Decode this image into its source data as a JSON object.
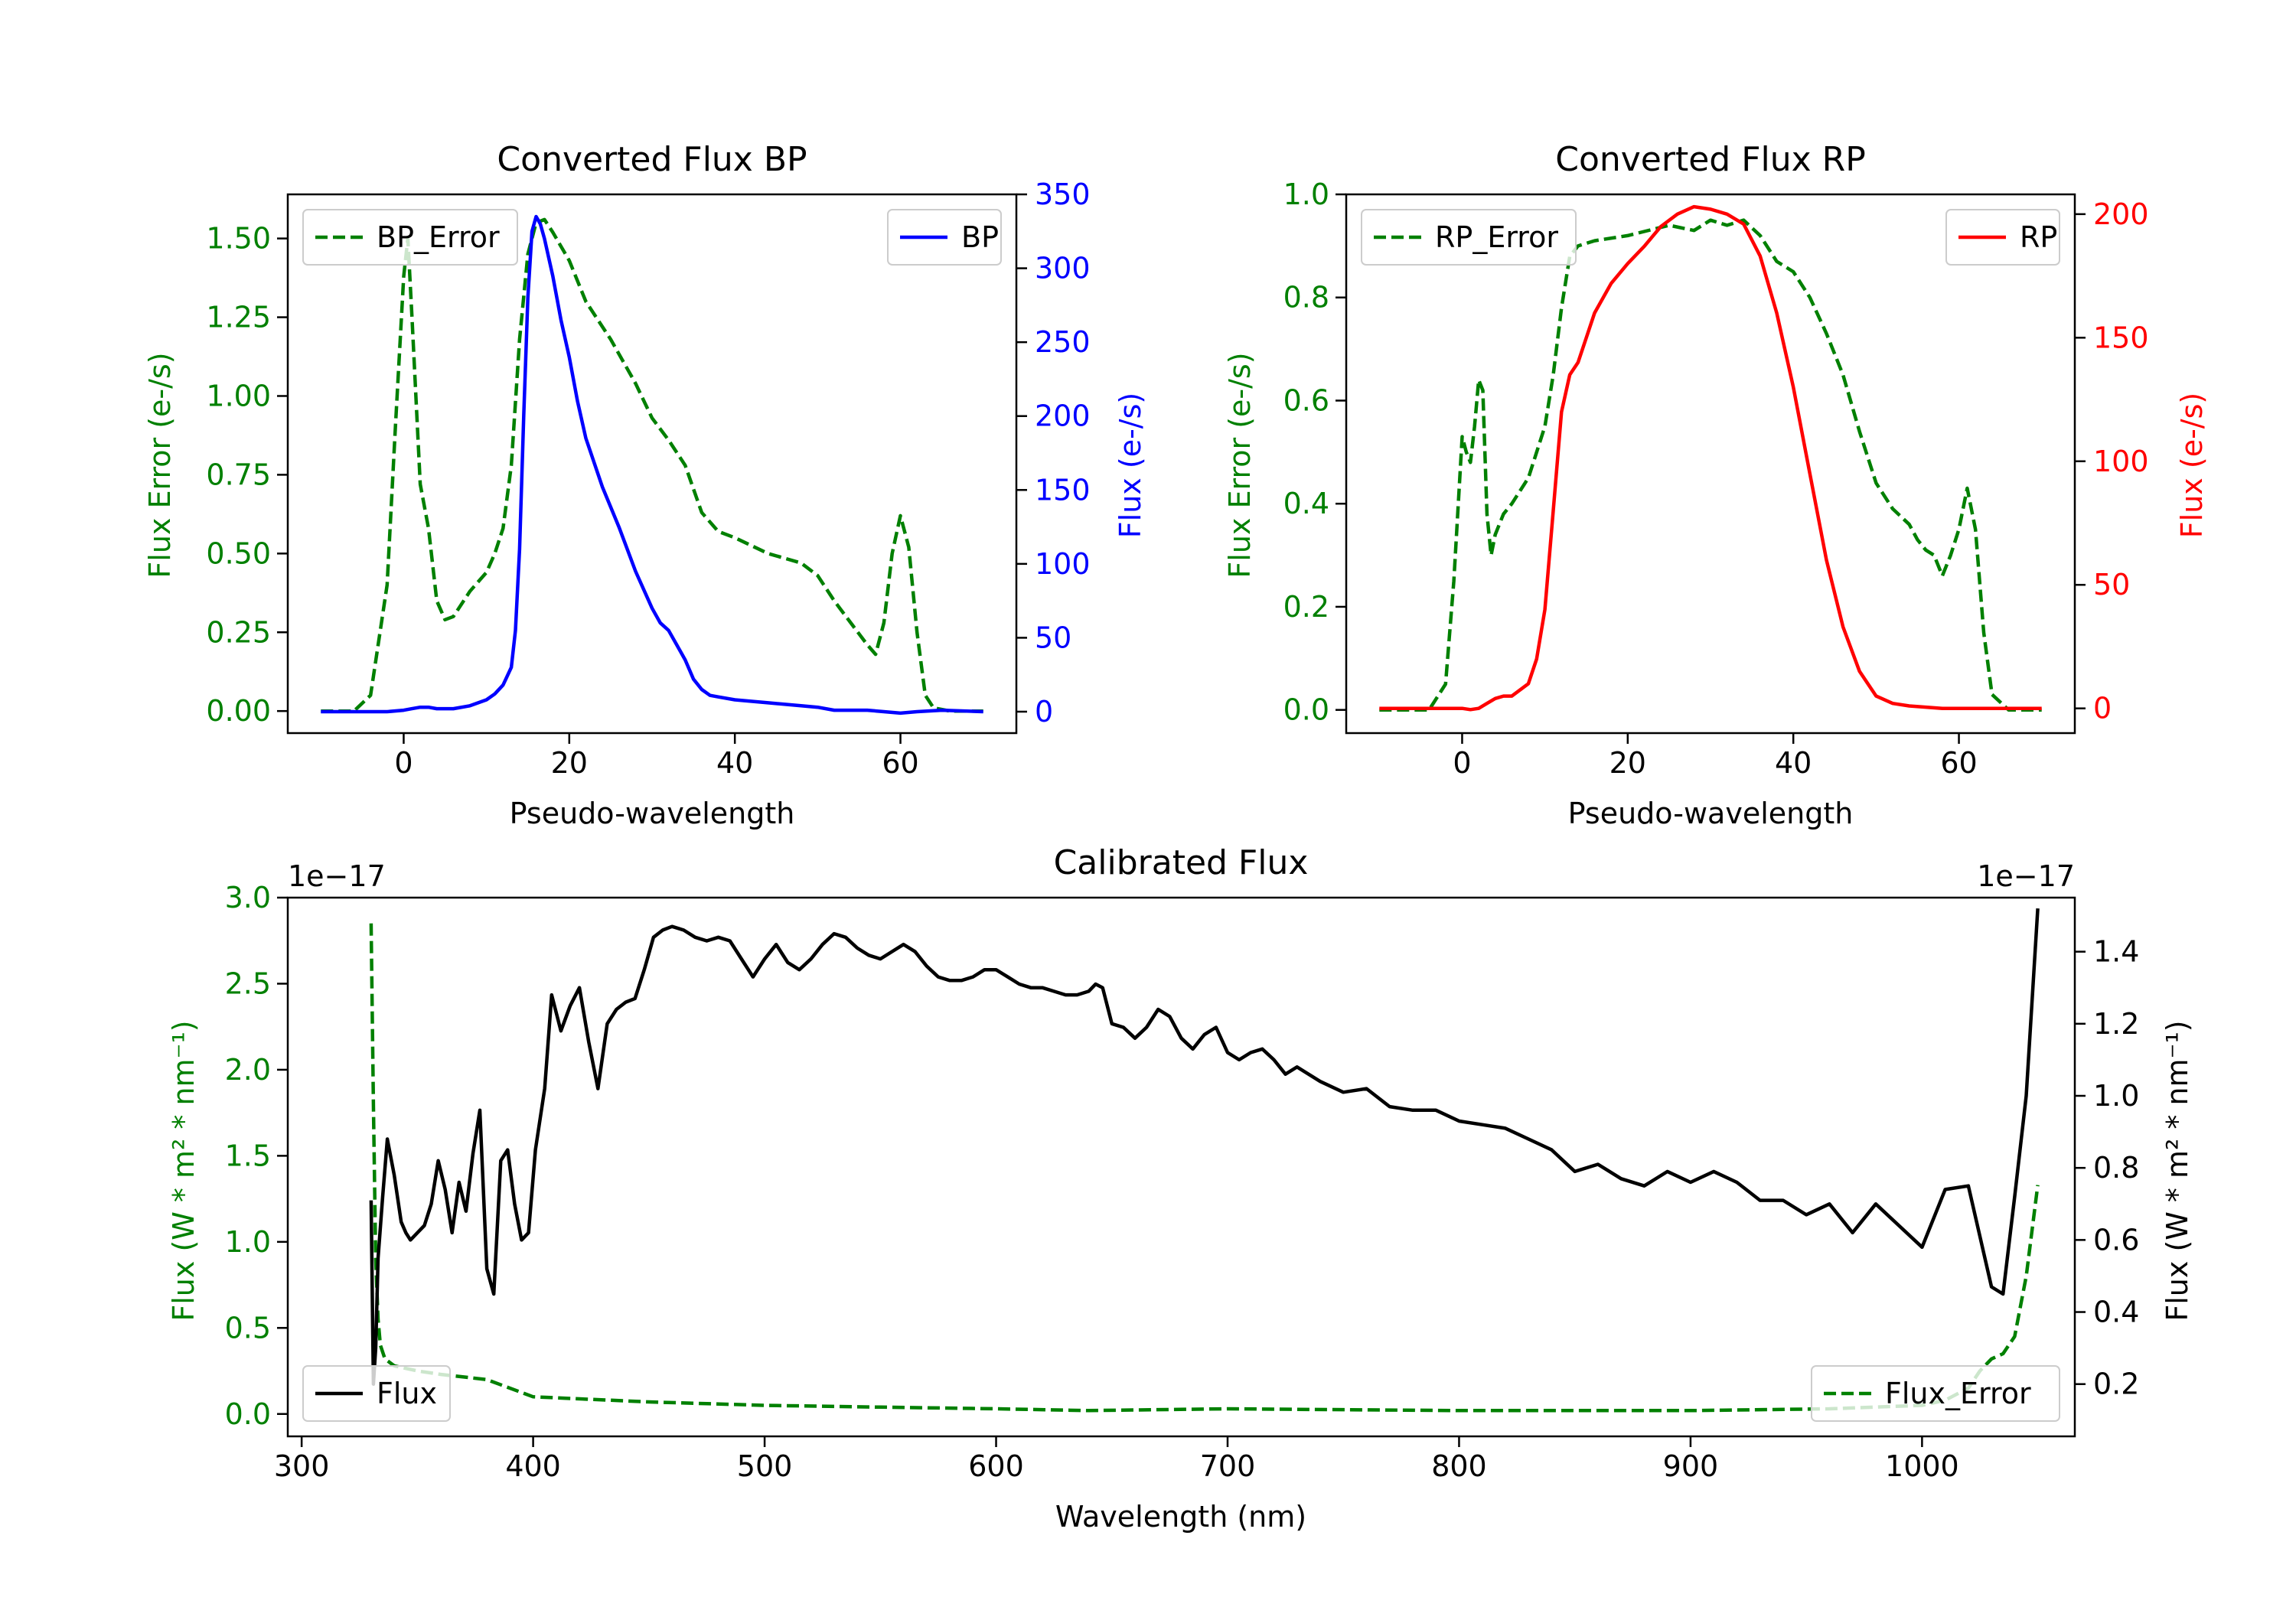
{
  "colors": {
    "error": "#008000",
    "bp": "#0000ff",
    "rp": "#ff0000",
    "flux": "#000000",
    "axis": "#000000",
    "background": "#ffffff"
  },
  "chart_data": [
    {
      "id": "bp",
      "type": "line",
      "title": "Converted Flux BP",
      "xlabel": "Pseudo-wavelength",
      "ylabel_left": "Flux Error (e-/s)",
      "ylabel_right": "Flux (e-/s)",
      "xlim": [
        -14,
        74
      ],
      "ylim_left": [
        -0.07,
        1.64
      ],
      "ylim_right": [
        -14.5,
        350
      ],
      "xticks": [
        0,
        20,
        40,
        60
      ],
      "yticks_left": [
        0.0,
        0.25,
        0.5,
        0.75,
        1.0,
        1.25,
        1.5
      ],
      "ytick_labels_left": [
        "0.00",
        "0.25",
        "0.50",
        "0.75",
        "1.00",
        "1.25",
        "1.50"
      ],
      "yticks_right": [
        0,
        50,
        100,
        150,
        200,
        250,
        300,
        350
      ],
      "ytick_labels_right": [
        "0",
        "50",
        "100",
        "150",
        "200",
        "250",
        "300",
        "350"
      ],
      "series": [
        {
          "name": "BP_Error",
          "axis": "left",
          "style": "dashed",
          "color_key": "error",
          "x": [
            -10,
            -6,
            -4,
            -2,
            -1,
            0,
            0.5,
            1,
            2,
            3,
            4,
            5,
            6,
            8,
            10,
            11,
            12,
            13,
            14,
            15,
            16,
            17,
            18,
            20,
            22,
            25,
            28,
            30,
            32,
            34,
            36,
            38,
            40,
            44,
            48,
            50,
            52,
            54,
            56,
            57,
            58,
            59,
            60,
            61,
            62,
            63,
            64,
            66,
            70
          ],
          "y": [
            0.0,
            0.0,
            0.05,
            0.4,
            0.9,
            1.38,
            1.5,
            1.25,
            0.72,
            0.58,
            0.35,
            0.29,
            0.3,
            0.38,
            0.44,
            0.5,
            0.58,
            0.78,
            1.18,
            1.45,
            1.55,
            1.56,
            1.52,
            1.43,
            1.3,
            1.18,
            1.04,
            0.93,
            0.86,
            0.78,
            0.63,
            0.57,
            0.55,
            0.5,
            0.47,
            0.43,
            0.35,
            0.28,
            0.21,
            0.18,
            0.28,
            0.5,
            0.62,
            0.52,
            0.25,
            0.05,
            0.01,
            0.0,
            0.0
          ]
        },
        {
          "name": "BP",
          "axis": "right",
          "style": "solid",
          "color_key": "bp",
          "x": [
            -10,
            -5,
            -2,
            0,
            1,
            2,
            3,
            4,
            5,
            6,
            8,
            10,
            11,
            12,
            13,
            13.5,
            14,
            14.5,
            15,
            15.5,
            16,
            16.5,
            17,
            18,
            19,
            20,
            21,
            22,
            24,
            26,
            28,
            30,
            31,
            32,
            33,
            34,
            35,
            36,
            37,
            38,
            40,
            44,
            48,
            50,
            52,
            56,
            58,
            60,
            62,
            65,
            70
          ],
          "y": [
            0,
            0,
            0,
            1,
            2,
            3,
            3,
            2,
            2,
            2,
            4,
            8,
            12,
            18,
            30,
            55,
            110,
            200,
            280,
            325,
            335,
            330,
            320,
            295,
            265,
            240,
            210,
            185,
            152,
            125,
            95,
            70,
            60,
            55,
            45,
            35,
            22,
            15,
            11,
            10,
            8,
            6,
            4,
            3,
            1,
            1,
            0,
            -1,
            0,
            1,
            0
          ]
        }
      ],
      "legend": [
        {
          "label": "BP_Error",
          "style": "dashed",
          "color_key": "error",
          "position": "upper-left"
        },
        {
          "label": "BP",
          "style": "solid",
          "color_key": "bp",
          "position": "upper-right"
        }
      ]
    },
    {
      "id": "rp",
      "type": "line",
      "title": "Converted Flux RP",
      "xlabel": "Pseudo-wavelength",
      "ylabel_left": "Flux Error (e-/s)",
      "ylabel_right": "Flux (e-/s)",
      "xlim": [
        -14,
        74
      ],
      "ylim_left": [
        -0.045,
        1.0
      ],
      "ylim_right": [
        -10,
        208
      ],
      "xticks": [
        0,
        20,
        40,
        60
      ],
      "yticks_left": [
        0.0,
        0.2,
        0.4,
        0.6,
        0.8,
        1.0
      ],
      "ytick_labels_left": [
        "0.0",
        "0.2",
        "0.4",
        "0.6",
        "0.8",
        "1.0"
      ],
      "yticks_right": [
        0,
        50,
        100,
        150,
        200
      ],
      "ytick_labels_right": [
        "0",
        "50",
        "100",
        "150",
        "200"
      ],
      "series": [
        {
          "name": "RP_Error",
          "axis": "left",
          "style": "dashed",
          "color_key": "error",
          "x": [
            -10,
            -4,
            -2,
            -1,
            0,
            0.5,
            1,
            1.5,
            2,
            2.5,
            3,
            3.5,
            4,
            5,
            6,
            8,
            10,
            11,
            12,
            13,
            14,
            16,
            20,
            25,
            28,
            30,
            32,
            34,
            36,
            38,
            40,
            42,
            44,
            46,
            48,
            50,
            52,
            54,
            55,
            56,
            57,
            58,
            59,
            60,
            61,
            62,
            63,
            64,
            66,
            70
          ],
          "y": [
            0.0,
            0.0,
            0.05,
            0.25,
            0.53,
            0.5,
            0.48,
            0.55,
            0.64,
            0.62,
            0.38,
            0.3,
            0.34,
            0.38,
            0.4,
            0.45,
            0.55,
            0.65,
            0.78,
            0.88,
            0.9,
            0.91,
            0.92,
            0.94,
            0.93,
            0.95,
            0.94,
            0.95,
            0.92,
            0.87,
            0.85,
            0.8,
            0.73,
            0.65,
            0.54,
            0.44,
            0.39,
            0.36,
            0.33,
            0.31,
            0.3,
            0.26,
            0.3,
            0.35,
            0.43,
            0.35,
            0.15,
            0.03,
            0.0,
            0.0
          ]
        },
        {
          "name": "RP",
          "axis": "right",
          "style": "solid",
          "color_key": "rp",
          "x": [
            -10,
            -5,
            0,
            1,
            2,
            3,
            4,
            5,
            6,
            8,
            9,
            10,
            11,
            12,
            13,
            14,
            15,
            16,
            18,
            20,
            22,
            24,
            26,
            28,
            30,
            32,
            34,
            36,
            38,
            40,
            42,
            44,
            46,
            48,
            50,
            52,
            54,
            56,
            58,
            60,
            65,
            70
          ],
          "y": [
            0,
            0,
            0,
            -0.5,
            0,
            2,
            4,
            5,
            5,
            10,
            20,
            40,
            80,
            120,
            135,
            140,
            150,
            160,
            172,
            180,
            187,
            195,
            200,
            203,
            202,
            200,
            196,
            183,
            160,
            130,
            95,
            60,
            33,
            15,
            5,
            2,
            1,
            0.5,
            0,
            0,
            0,
            0
          ]
        }
      ],
      "legend": [
        {
          "label": "RP_Error",
          "style": "dashed",
          "color_key": "error",
          "position": "upper-left"
        },
        {
          "label": "RP",
          "style": "solid",
          "color_key": "rp",
          "position": "upper-right"
        }
      ]
    },
    {
      "id": "cal",
      "type": "line",
      "title": "Calibrated Flux",
      "xlabel": "Wavelength (nm)",
      "ylabel_left": "Flux (W * m² * nm⁻¹)",
      "ylabel_right": "Flux (W * m² * nm⁻¹)",
      "offset_left": "1e−17",
      "offset_right": "1e−17",
      "xlim": [
        294,
        1066
      ],
      "ylim_left": [
        -0.13,
        3.0
      ],
      "ylim_right": [
        0.055,
        1.55
      ],
      "xticks": [
        300,
        400,
        500,
        600,
        700,
        800,
        900,
        1000
      ],
      "yticks_left": [
        0.0,
        0.5,
        1.0,
        1.5,
        2.0,
        2.5,
        3.0
      ],
      "ytick_labels_left": [
        "0.0",
        "0.5",
        "1.0",
        "1.5",
        "2.0",
        "2.5",
        "3.0"
      ],
      "yticks_right": [
        0.2,
        0.4,
        0.6,
        0.8,
        1.0,
        1.2,
        1.4
      ],
      "ytick_labels_right": [
        "0.2",
        "0.4",
        "0.6",
        "0.8",
        "1.0",
        "1.2",
        "1.4"
      ],
      "series": [
        {
          "name": "Flux_Error",
          "axis": "left",
          "style": "dashed",
          "color_key": "error",
          "x": [
            330,
            331,
            332,
            333,
            334,
            336,
            340,
            350,
            360,
            380,
            400,
            450,
            500,
            550,
            600,
            640,
            700,
            800,
            900,
            960,
            1000,
            1010,
            1020,
            1025,
            1030,
            1035,
            1040,
            1045,
            1050
          ],
          "y": [
            2.85,
            1.8,
            0.9,
            0.55,
            0.4,
            0.32,
            0.28,
            0.25,
            0.23,
            0.2,
            0.1,
            0.07,
            0.05,
            0.04,
            0.03,
            0.02,
            0.03,
            0.02,
            0.02,
            0.03,
            0.05,
            0.08,
            0.15,
            0.25,
            0.32,
            0.35,
            0.45,
            0.8,
            1.33
          ]
        },
        {
          "name": "Flux",
          "axis": "right",
          "style": "solid",
          "color_key": "flux",
          "x": [
            330,
            331,
            332,
            333,
            335,
            337,
            340,
            343,
            345,
            347,
            350,
            353,
            356,
            359,
            362,
            365,
            368,
            371,
            374,
            377,
            380,
            383,
            386,
            389,
            392,
            395,
            398,
            401,
            405,
            408,
            412,
            416,
            420,
            424,
            428,
            432,
            436,
            440,
            444,
            448,
            452,
            456,
            460,
            465,
            470,
            475,
            480,
            485,
            490,
            495,
            500,
            505,
            510,
            515,
            520,
            525,
            530,
            535,
            540,
            545,
            550,
            555,
            560,
            565,
            570,
            575,
            580,
            585,
            590,
            595,
            600,
            605,
            610,
            615,
            620,
            625,
            630,
            635,
            640,
            643,
            646,
            650,
            655,
            660,
            665,
            670,
            675,
            680,
            685,
            690,
            695,
            700,
            705,
            710,
            715,
            720,
            725,
            730,
            740,
            750,
            760,
            770,
            780,
            790,
            800,
            810,
            820,
            830,
            840,
            850,
            860,
            870,
            880,
            890,
            900,
            910,
            920,
            930,
            940,
            950,
            960,
            970,
            980,
            990,
            1000,
            1010,
            1020,
            1030,
            1035,
            1040,
            1045,
            1050
          ],
          "y": [
            0.71,
            0.2,
            0.3,
            0.55,
            0.72,
            0.88,
            0.78,
            0.65,
            0.62,
            0.6,
            0.62,
            0.64,
            0.7,
            0.82,
            0.74,
            0.62,
            0.76,
            0.68,
            0.84,
            0.96,
            0.52,
            0.45,
            0.82,
            0.85,
            0.7,
            0.6,
            0.62,
            0.85,
            1.02,
            1.28,
            1.18,
            1.25,
            1.3,
            1.15,
            1.02,
            1.2,
            1.24,
            1.26,
            1.27,
            1.35,
            1.44,
            1.46,
            1.47,
            1.46,
            1.44,
            1.43,
            1.44,
            1.43,
            1.38,
            1.33,
            1.38,
            1.42,
            1.37,
            1.35,
            1.38,
            1.42,
            1.45,
            1.44,
            1.41,
            1.39,
            1.38,
            1.4,
            1.42,
            1.4,
            1.36,
            1.33,
            1.32,
            1.32,
            1.33,
            1.35,
            1.35,
            1.33,
            1.31,
            1.3,
            1.3,
            1.29,
            1.28,
            1.28,
            1.29,
            1.31,
            1.3,
            1.2,
            1.19,
            1.16,
            1.19,
            1.24,
            1.22,
            1.16,
            1.13,
            1.17,
            1.19,
            1.12,
            1.1,
            1.12,
            1.13,
            1.1,
            1.06,
            1.08,
            1.04,
            1.01,
            1.02,
            0.97,
            0.96,
            0.96,
            0.93,
            0.92,
            0.91,
            0.88,
            0.85,
            0.79,
            0.81,
            0.77,
            0.75,
            0.79,
            0.76,
            0.79,
            0.76,
            0.71,
            0.71,
            0.67,
            0.7,
            0.62,
            0.7,
            0.64,
            0.58,
            0.74,
            0.75,
            0.47,
            0.45,
            0.72,
            1.0,
            1.52
          ]
        }
      ],
      "legend": [
        {
          "label": "Flux",
          "style": "solid",
          "color_key": "flux",
          "position": "lower-left"
        },
        {
          "label": "Flux_Error",
          "style": "dashed",
          "color_key": "error",
          "position": "lower-right"
        }
      ]
    }
  ]
}
